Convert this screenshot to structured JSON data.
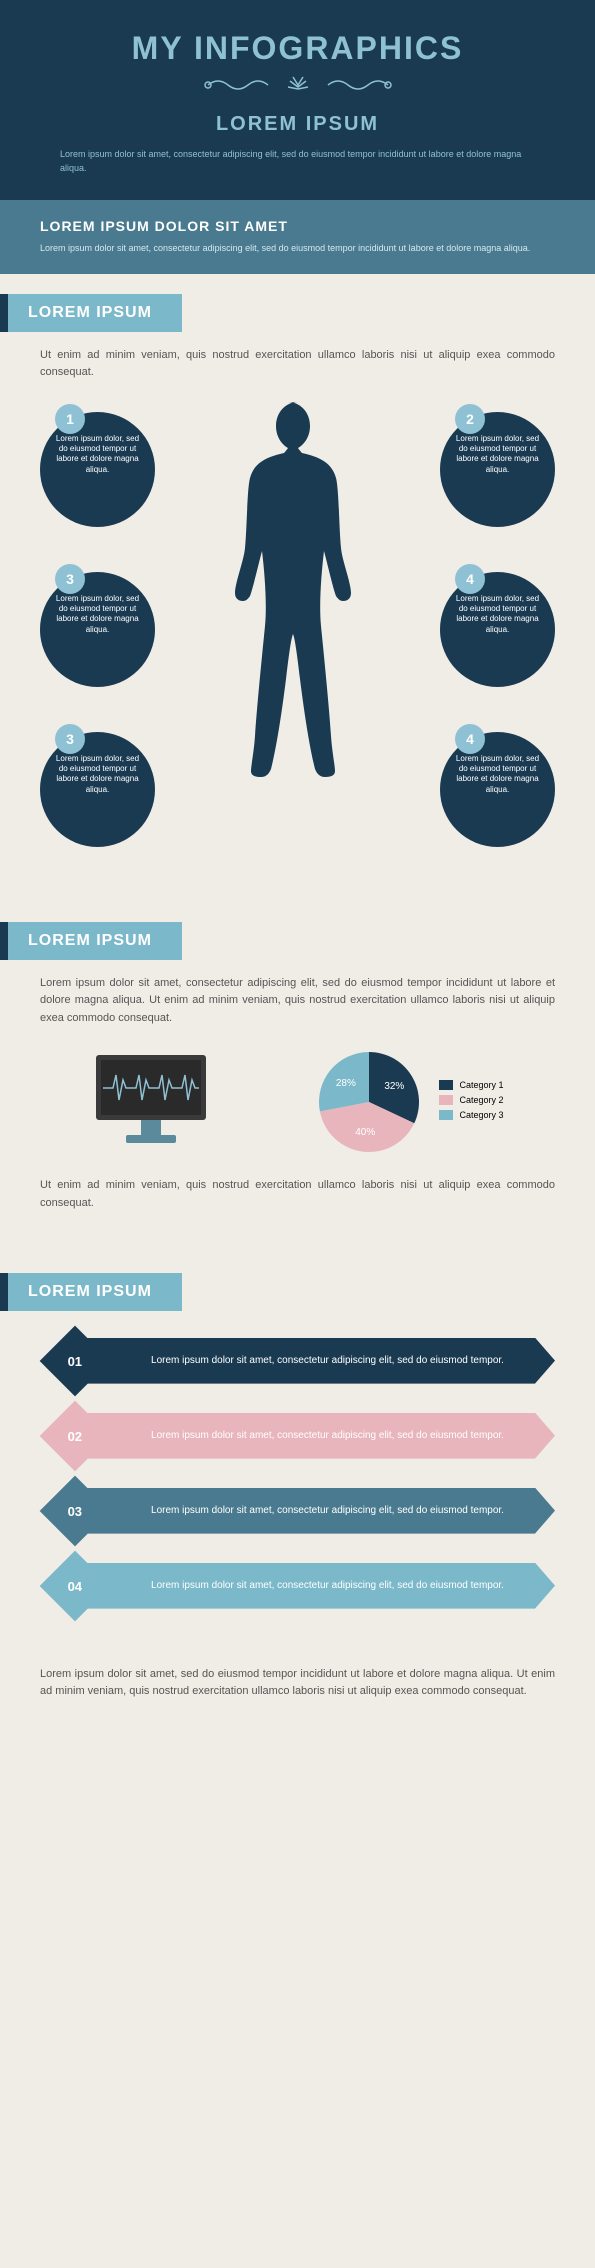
{
  "header": {
    "title": "MY INFOGRAPHICS",
    "subtitle": "LOREM IPSUM",
    "desc": "Lorem ipsum dolor sit amet, consectetur adipiscing elit, sed do eiusmod tempor incididunt ut labore et dolore magna aliqua."
  },
  "subheader": {
    "title": "LOREM IPSUM DOLOR SIT AMET",
    "desc": "Lorem ipsum dolor sit amet, consectetur adipiscing elit, sed do eiusmod tempor incididunt ut labore et dolore magna aliqua."
  },
  "section1": {
    "title": "LOREM IPSUM",
    "text": "Ut enim ad minim veniam, quis nostrud exercitation ullamco laboris nisi ut aliquip exea commodo consequat.",
    "bubbles": [
      {
        "num": "1",
        "text": "Lorem ipsum dolor, sed do eiusmod tempor ut labore et dolore magna aliqua."
      },
      {
        "num": "2",
        "text": "Lorem ipsum dolor, sed do eiusmod tempor ut labore et dolore magna aliqua."
      },
      {
        "num": "3",
        "text": "Lorem ipsum dolor, sed do eiusmod tempor ut labore et dolore magna aliqua."
      },
      {
        "num": "4",
        "text": "Lorem ipsum dolor, sed do eiusmod tempor ut labore et dolore magna aliqua."
      },
      {
        "num": "3",
        "text": "Lorem ipsum dolor, sed do eiusmod tempor ut labore et dolore magna aliqua."
      },
      {
        "num": "4",
        "text": "Lorem ipsum dolor, sed do eiusmod tempor ut labore et dolore magna aliqua."
      }
    ],
    "body_color": "#1a3a52",
    "bubble_bg": "#1a3a52",
    "bubble_num_bg": "#8fc1d4"
  },
  "section2": {
    "title": "LOREM IPSUM",
    "text1": "Lorem ipsum dolor sit amet, consectetur adipiscing elit, sed do eiusmod tempor incididunt ut labore et dolore magna aliqua. Ut enim ad minim veniam, quis nostrud exercitation ullamco laboris nisi ut aliquip exea commodo consequat.",
    "text2": "Ut enim ad minim veniam, quis nostrud exercitation ullamco laboris nisi ut aliquip exea commodo consequat.",
    "monitor_color": "#3a3a3a",
    "monitor_stand": "#5a8a9c",
    "monitor_line": "#8fc1d4",
    "pie": {
      "slices": [
        {
          "label": "Category 1",
          "value": 32,
          "color": "#1a3a52"
        },
        {
          "label": "Category 2",
          "value": 40,
          "color": "#e8b5bc"
        },
        {
          "label": "Category 3",
          "value": 28,
          "color": "#7bb8c9"
        }
      ]
    }
  },
  "section3": {
    "title": "LOREM IPSUM",
    "items": [
      {
        "num": "01",
        "text": "Lorem ipsum dolor sit amet, consectetur adipiscing elit, sed do eiusmod tempor.",
        "color": "#1a3a52"
      },
      {
        "num": "02",
        "text": "Lorem ipsum dolor sit amet, consectetur adipiscing elit, sed do eiusmod tempor.",
        "color": "#e8b5bc"
      },
      {
        "num": "03",
        "text": "Lorem ipsum dolor sit amet, consectetur adipiscing elit, sed do eiusmod tempor.",
        "color": "#4a7a8f"
      },
      {
        "num": "04",
        "text": "Lorem ipsum dolor sit amet, consectetur adipiscing elit, sed do eiusmod tempor.",
        "color": "#7bb8c9"
      }
    ]
  },
  "footer": {
    "text": "Lorem ipsum dolor sit amet, sed do eiusmod tempor incididunt ut labore et dolore magna aliqua. Ut enim ad minim veniam, quis nostrud exercitation ullamco laboris nisi ut aliquip exea commodo consequat."
  },
  "colors": {
    "header_bg": "#1a3a52",
    "subheader_bg": "#4a7a8f",
    "banner_bg": "#7bb8c9",
    "banner_border": "#1a3a52",
    "page_bg": "#f0ede6",
    "accent": "#8fc1d4"
  }
}
